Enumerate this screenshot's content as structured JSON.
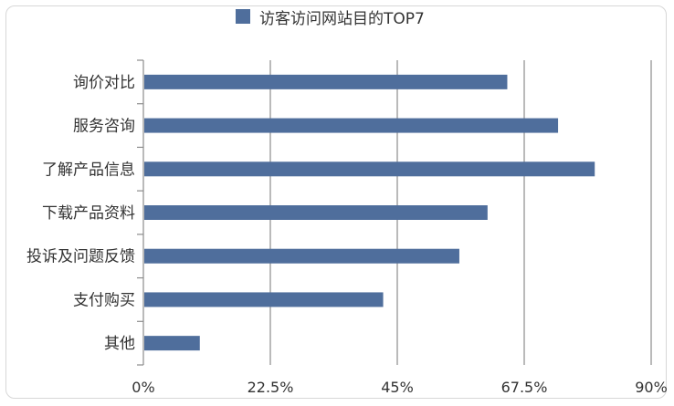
{
  "chart_data": {
    "type": "bar",
    "orientation": "horizontal",
    "title": "",
    "legend": {
      "position": "top",
      "entries": [
        "访客访问网站目的TOP7"
      ]
    },
    "categories": [
      "询价对比",
      "服务咨询",
      "了解产品信息",
      "下载产品资料",
      "投诉及问题反馈",
      "支付购买",
      "其他"
    ],
    "series": [
      {
        "name": "访客访问网站目的TOP7",
        "color": "#4f6e9c",
        "values": [
          64.5,
          73.5,
          80.0,
          61.0,
          56.0,
          42.5,
          10.0
        ]
      }
    ],
    "x_axis": {
      "ticks": [
        0,
        22.5,
        45,
        67.5,
        90
      ],
      "tick_labels": [
        "0%",
        "22.5%",
        "45%",
        "67.5%",
        "90%"
      ],
      "range": [
        0,
        90
      ]
    },
    "grid": "vertical",
    "xlabel": "",
    "ylabel": ""
  }
}
